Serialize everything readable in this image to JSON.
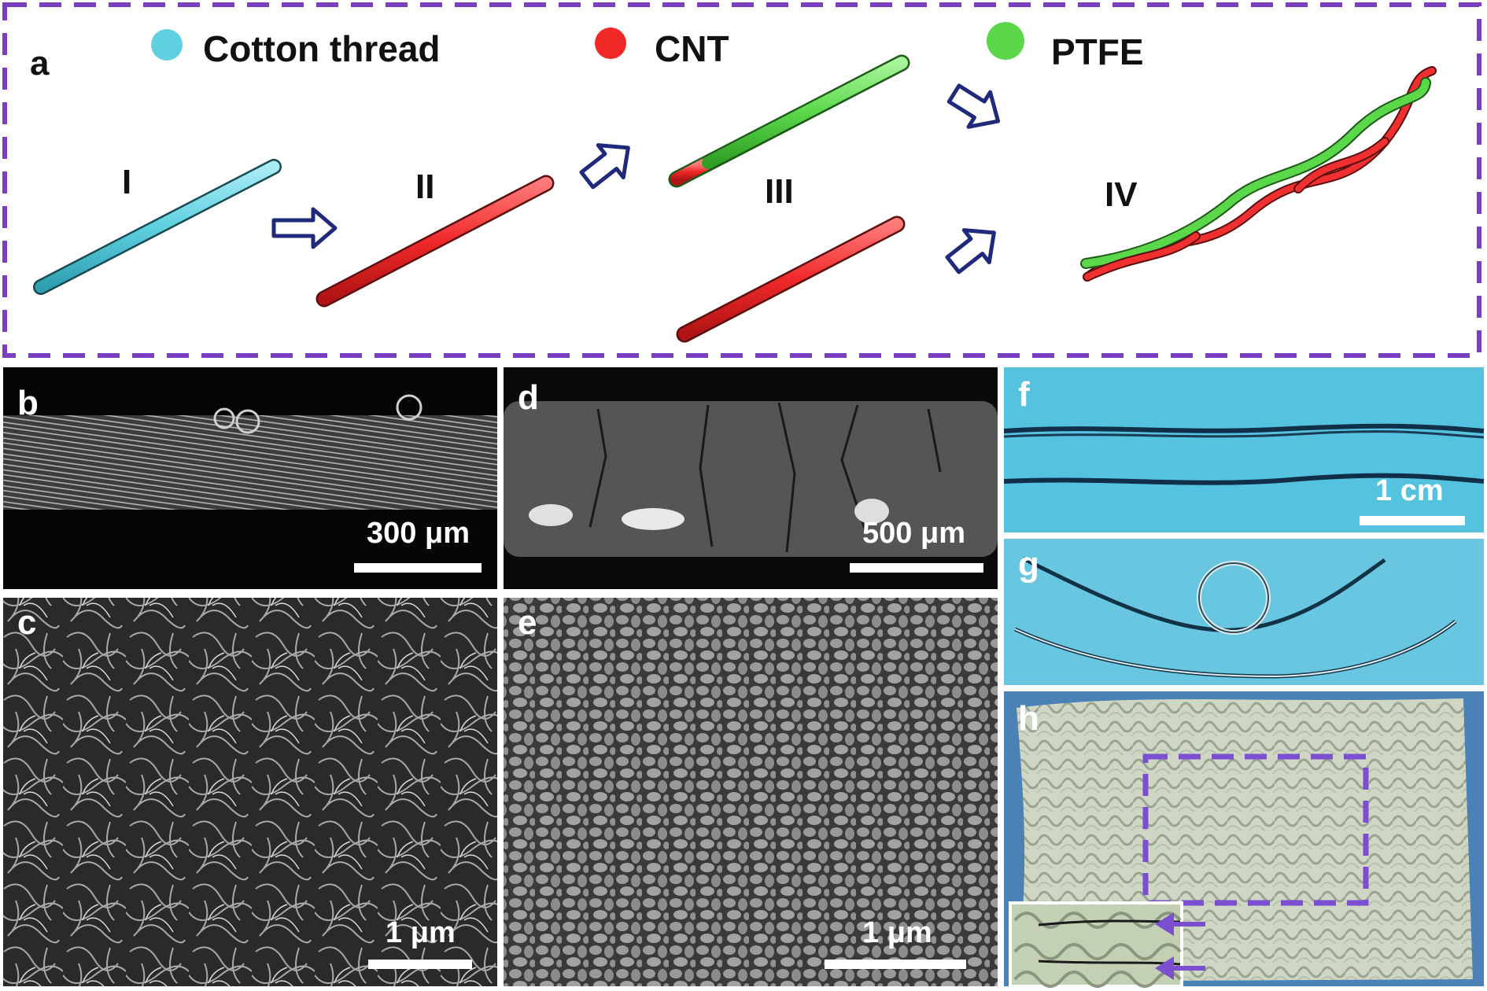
{
  "panel_a": {
    "label": "a",
    "legend": [
      {
        "name": "Cotton thread",
        "color": "#5fd0e0"
      },
      {
        "name": "CNT",
        "color": "#f02828"
      },
      {
        "name": "PTFE",
        "color": "#5ad84a"
      }
    ],
    "steps": [
      "I",
      "II",
      "III",
      "IV"
    ],
    "border_color": "#7a3fc0",
    "arrow_color": "#1f2a7a"
  },
  "panels": {
    "b": {
      "label": "b",
      "scale": "300 μm"
    },
    "c": {
      "label": "c",
      "scale": "1 μm"
    },
    "d": {
      "label": "d",
      "scale": "500 μm"
    },
    "e": {
      "label": "e",
      "scale": "1 μm"
    },
    "f": {
      "label": "f",
      "scale": "1 cm"
    },
    "g": {
      "label": "g"
    },
    "h": {
      "label": "h"
    }
  }
}
